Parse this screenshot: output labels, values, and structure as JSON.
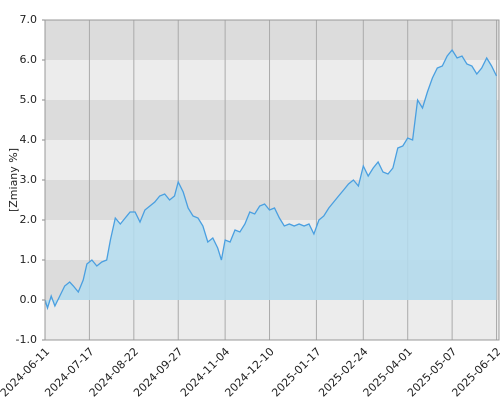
{
  "chart_data": {
    "type": "area",
    "y_label": "[Zmiany %]",
    "x": [
      "2024-06-11",
      "2024-06-13",
      "2024-06-16",
      "2024-06-19",
      "2024-06-23",
      "2024-06-27",
      "2024-07-01",
      "2024-07-04",
      "2024-07-08",
      "2024-07-12",
      "2024-07-15",
      "2024-07-19",
      "2024-07-23",
      "2024-07-27",
      "2024-07-31",
      "2024-08-03",
      "2024-08-07",
      "2024-08-11",
      "2024-08-15",
      "2024-08-19",
      "2024-08-23",
      "2024-08-27",
      "2024-08-31",
      "2024-09-04",
      "2024-09-08",
      "2024-09-12",
      "2024-09-16",
      "2024-09-20",
      "2024-09-24",
      "2024-09-27",
      "2024-10-01",
      "2024-10-05",
      "2024-10-09",
      "2024-10-13",
      "2024-10-17",
      "2024-10-21",
      "2024-10-25",
      "2024-10-29",
      "2024-11-01",
      "2024-11-04",
      "2024-11-08",
      "2024-11-12",
      "2024-11-16",
      "2024-11-20",
      "2024-11-24",
      "2024-11-28",
      "2024-12-02",
      "2024-12-06",
      "2024-12-10",
      "2024-12-14",
      "2024-12-18",
      "2024-12-22",
      "2024-12-26",
      "2024-12-30",
      "2025-01-03",
      "2025-01-07",
      "2025-01-11",
      "2025-01-15",
      "2025-01-19",
      "2025-01-23",
      "2025-01-27",
      "2025-01-31",
      "2025-02-04",
      "2025-02-08",
      "2025-02-12",
      "2025-02-16",
      "2025-02-20",
      "2025-02-24",
      "2025-02-28",
      "2025-03-04",
      "2025-03-08",
      "2025-03-12",
      "2025-03-16",
      "2025-03-20",
      "2025-03-24",
      "2025-03-28",
      "2025-04-01",
      "2025-04-05",
      "2025-04-09",
      "2025-04-13",
      "2025-04-17",
      "2025-04-21",
      "2025-04-25",
      "2025-04-29",
      "2025-05-03",
      "2025-05-07",
      "2025-05-11",
      "2025-05-15",
      "2025-05-19",
      "2025-05-23",
      "2025-05-27",
      "2025-05-31",
      "2025-06-04",
      "2025-06-08",
      "2025-06-12"
    ],
    "values": [
      0.0,
      -0.2,
      0.1,
      -0.15,
      0.1,
      0.35,
      0.45,
      0.35,
      0.2,
      0.5,
      0.9,
      1.0,
      0.85,
      0.95,
      1.0,
      1.5,
      2.05,
      1.9,
      2.05,
      2.2,
      2.2,
      1.95,
      2.25,
      2.35,
      2.45,
      2.6,
      2.65,
      2.5,
      2.6,
      2.95,
      2.7,
      2.3,
      2.1,
      2.05,
      1.85,
      1.45,
      1.55,
      1.3,
      1.0,
      1.5,
      1.45,
      1.75,
      1.7,
      1.9,
      2.2,
      2.15,
      2.35,
      2.4,
      2.25,
      2.3,
      2.05,
      1.85,
      1.9,
      1.85,
      1.9,
      1.85,
      1.9,
      1.65,
      2.0,
      2.1,
      2.3,
      2.45,
      2.6,
      2.75,
      2.9,
      3.0,
      2.85,
      3.35,
      3.1,
      3.3,
      3.45,
      3.2,
      3.15,
      3.3,
      3.8,
      3.85,
      4.05,
      4.0,
      5.0,
      4.8,
      5.2,
      5.55,
      5.8,
      5.85,
      6.1,
      6.25,
      6.05,
      6.1,
      5.9,
      5.85,
      5.65,
      5.8,
      6.05,
      5.85,
      5.6
    ],
    "color": "#4a9fe0",
    "fill_color": "#b3dcef",
    "band_colors": [
      "#ececec",
      "#dcdcdc"
    ],
    "xlim": [
      "2024-06-11",
      "2025-06-14"
    ],
    "xticks": [
      "2024-06-11",
      "2024-07-17",
      "2024-08-22",
      "2024-09-27",
      "2024-11-04",
      "2024-12-10",
      "2025-01-17",
      "2025-02-24",
      "2025-04-01",
      "2025-05-07",
      "2025-06-12"
    ],
    "ylim": [
      -1,
      7
    ],
    "yticks": [
      {
        "value": -1,
        "label": "-1.0"
      },
      {
        "value": 0,
        "label": "0.0"
      },
      {
        "value": 1,
        "label": "1.0"
      },
      {
        "value": 2,
        "label": "2.0"
      },
      {
        "value": 3,
        "label": "3.0"
      },
      {
        "value": 4,
        "label": "4.0"
      },
      {
        "value": 5,
        "label": "5.0"
      },
      {
        "value": 6,
        "label": "6.0"
      },
      {
        "value": 7,
        "label": "7.0"
      }
    ],
    "grid": true
  }
}
